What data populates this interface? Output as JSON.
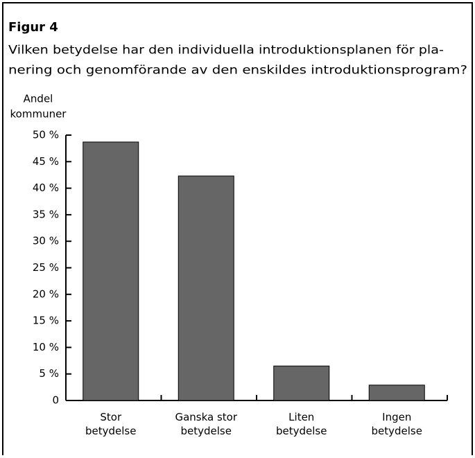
{
  "chart_data": {
    "type": "bar",
    "title": "Figur 4",
    "subtitle": [
      "Vilken betydelse har den individuella introduktionsplanen för pla-",
      "nering och genomförande av den enskildes introduktionsprogram?"
    ],
    "y_label": [
      "Andel",
      "kommuner"
    ],
    "categories": [
      "Stor betydelse",
      "Ganska stor betydelse",
      "Liten betydelse",
      "Ingen betydelse"
    ],
    "values": [
      48.7,
      42.3,
      6.5,
      2.9
    ],
    "color": "#666666",
    "ylim": [
      0,
      50
    ],
    "yticks": [
      0,
      {
        "value": 5,
        "label": "5 %"
      },
      {
        "value": 10,
        "label": "10 %"
      },
      {
        "value": 15,
        "label": "15 %"
      },
      {
        "value": 20,
        "label": "20 %"
      },
      {
        "value": 25,
        "label": "25 %"
      },
      {
        "value": 30,
        "label": "30 %"
      },
      {
        "value": 35,
        "label": "35 %"
      },
      {
        "value": 40,
        "label": "40 %"
      },
      {
        "value": 45,
        "label": "45 %"
      },
      {
        "value": 50,
        "label": "50 %"
      }
    ],
    "grid": false
  }
}
